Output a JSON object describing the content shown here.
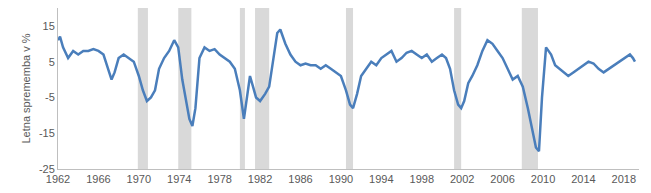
{
  "chart_data": {
    "type": "line",
    "y_label": "Letna sprememba v %",
    "color": "#4a7ebb",
    "grid": false,
    "xlim": [
      1962,
      2019.5
    ],
    "ylim": [
      -25,
      20
    ],
    "xticks": [
      1962,
      1966,
      1970,
      1974,
      1978,
      1982,
      1986,
      1990,
      1994,
      1998,
      2002,
      2006,
      2010,
      2014,
      2018
    ],
    "yticks": [
      -25,
      -15,
      -5,
      5,
      15
    ],
    "shaded_periods": [
      [
        1969.9,
        1970.9
      ],
      [
        1973.9,
        1975.2
      ],
      [
        1980.0,
        1980.5
      ],
      [
        1981.5,
        1982.9
      ],
      [
        1990.5,
        1991.2
      ],
      [
        2001.2,
        2001.9
      ],
      [
        2007.9,
        2009.5
      ]
    ],
    "x": [
      1962.0,
      1962.2,
      1962.5,
      1962.8,
      1963.0,
      1963.5,
      1964.0,
      1964.5,
      1965.0,
      1965.5,
      1966.0,
      1966.5,
      1967.0,
      1967.3,
      1967.6,
      1968.0,
      1968.5,
      1969.0,
      1969.5,
      1970.0,
      1970.4,
      1970.8,
      1971.2,
      1971.6,
      1972.0,
      1972.5,
      1973.0,
      1973.5,
      1973.9,
      1974.3,
      1974.7,
      1975.0,
      1975.3,
      1975.6,
      1976.0,
      1976.5,
      1977.0,
      1977.5,
      1978.0,
      1978.5,
      1979.0,
      1979.5,
      1980.0,
      1980.4,
      1980.7,
      1981.0,
      1981.3,
      1981.6,
      1982.0,
      1982.5,
      1982.9,
      1983.3,
      1983.7,
      1984.0,
      1984.5,
      1985.0,
      1985.5,
      1986.0,
      1986.5,
      1987.0,
      1987.5,
      1988.0,
      1988.5,
      1989.0,
      1989.5,
      1990.0,
      1990.5,
      1990.9,
      1991.2,
      1991.6,
      1992.0,
      1992.5,
      1993.0,
      1993.5,
      1994.0,
      1994.5,
      1995.0,
      1995.5,
      1996.0,
      1996.5,
      1997.0,
      1997.5,
      1998.0,
      1998.5,
      1999.0,
      1999.5,
      2000.0,
      2000.4,
      2000.8,
      2001.2,
      2001.6,
      2001.9,
      2002.2,
      2002.6,
      2003.0,
      2003.5,
      2004.0,
      2004.5,
      2005.0,
      2005.5,
      2006.0,
      2006.5,
      2007.0,
      2007.5,
      2008.0,
      2008.5,
      2009.0,
      2009.3,
      2009.6,
      2009.9,
      2010.3,
      2010.8,
      2011.2,
      2011.6,
      2012.0,
      2012.5,
      2013.0,
      2013.5,
      2014.0,
      2014.5,
      2015.0,
      2015.5,
      2016.0,
      2016.5,
      2017.0,
      2017.5,
      2018.0,
      2018.3,
      2018.6,
      2018.9,
      2019.1
    ],
    "values": [
      11,
      12,
      9,
      7,
      6,
      8,
      7,
      8,
      8,
      8.5,
      8,
      7,
      3,
      0,
      2,
      6,
      7,
      6,
      5,
      1,
      -3,
      -6,
      -5,
      -3,
      3,
      6,
      8,
      11,
      9,
      0,
      -6,
      -11,
      -13,
      -8,
      6,
      9,
      8,
      8.5,
      7,
      6,
      5,
      3,
      -3,
      -11,
      -5,
      1,
      -2,
      -5,
      -6,
      -4,
      -2,
      5,
      13,
      14,
      10,
      7,
      5,
      4,
      4.5,
      4,
      4,
      3,
      4,
      3,
      2,
      1,
      -3,
      -7,
      -8,
      -4,
      1,
      3,
      5,
      4,
      6,
      7,
      8,
      5,
      6,
      7.5,
      8,
      7,
      6,
      7,
      5,
      6,
      7,
      6,
      3,
      -3,
      -7,
      -8,
      -6,
      -1,
      1,
      4,
      8,
      11,
      10,
      8,
      6,
      3,
      0,
      1,
      -2,
      -8,
      -15,
      -19,
      -20,
      -5,
      9,
      7,
      4,
      3,
      2,
      1,
      2,
      3,
      4,
      5,
      4.5,
      3,
      2,
      3,
      4,
      5,
      6,
      6.5,
      7,
      6,
      5
    ]
  }
}
